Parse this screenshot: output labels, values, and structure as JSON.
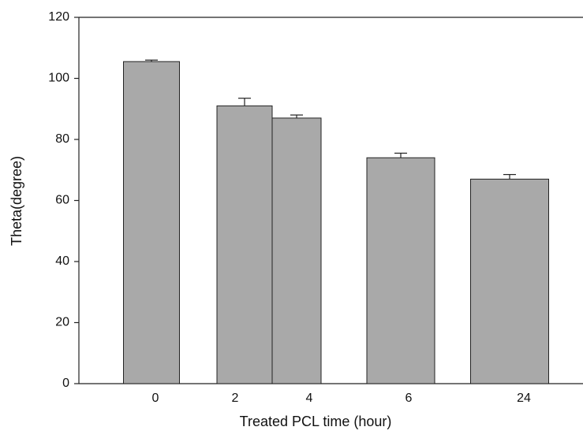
{
  "chart_data": {
    "type": "bar",
    "xlabel": "Treated PCL time (hour)",
    "ylabel": "Theta(degree)",
    "categories": [
      "0",
      "2",
      "4",
      "6",
      "24"
    ],
    "values": [
      105.5,
      91,
      87,
      74,
      67
    ],
    "errors": [
      0.5,
      2.5,
      1,
      1.5,
      1.5
    ],
    "color": "#a9a9a9",
    "ylim": [
      0,
      120
    ],
    "yticks": [
      0,
      20,
      40,
      60,
      80,
      100,
      120
    ]
  }
}
